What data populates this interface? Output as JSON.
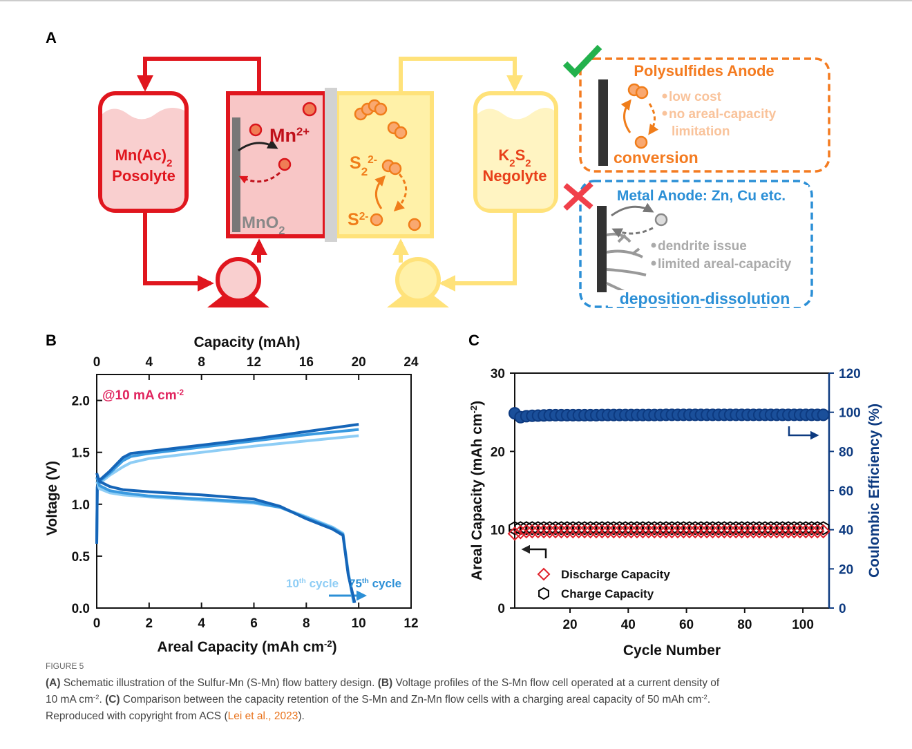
{
  "panel_labels": [
    "A",
    "B",
    "C"
  ],
  "diagram": {
    "posolyte_name": [
      {
        "t": "Mn(Ac)"
      },
      {
        "sub": "2"
      }
    ],
    "posolyte_label": "Posolyte",
    "mn_ion": [
      {
        "t": "Mn"
      },
      {
        "sup": "2+"
      }
    ],
    "mno2": [
      {
        "t": "MnO"
      },
      {
        "sub": "2"
      }
    ],
    "s2_ion": [
      {
        "t": "S"
      },
      {
        "sub": "2"
      },
      {
        "sup": "2-"
      }
    ],
    "s_ion": [
      {
        "t": "S"
      },
      {
        "sup": "2-"
      }
    ],
    "negolyte_name": [
      {
        "t": "K"
      },
      {
        "sub": "2"
      },
      {
        "t": "S"
      },
      {
        "sub": "2"
      }
    ],
    "negolyte_label": "Negolyte",
    "polysulfide_box": {
      "title": "Polysulfides Anode",
      "points": [
        "low cost",
        "no areal-capacity",
        "limitation"
      ],
      "mechanism": "conversion"
    },
    "metal_box": {
      "title": "Metal Anode: Zn, Cu etc.",
      "points": [
        "dendrite issue",
        "limited areal-capacity"
      ],
      "mechanism": "deposition-dissolution"
    }
  },
  "chart_data": [
    {
      "type": "line",
      "xlabel": [
        {
          "t": "Areal Capacity (mAh cm"
        },
        {
          "sup": "-2"
        },
        {
          "t": ")"
        }
      ],
      "x2label": "Capacity (mAh)",
      "ylabel": "Voltage (V)",
      "xlim": [
        0,
        12
      ],
      "xticks": [
        0,
        2,
        4,
        6,
        8,
        10,
        12
      ],
      "x2lim": [
        0,
        24
      ],
      "x2ticks": [
        0,
        4,
        8,
        12,
        16,
        20,
        24
      ],
      "ylim": [
        0,
        2.25
      ],
      "yticks": [
        {
          "value": 0,
          "label": "0.0"
        },
        0.5,
        {
          "value": 1,
          "label": "1.0"
        },
        1.5,
        {
          "value": 2,
          "label": "2.0"
        }
      ],
      "annotations": [
        {
          "text": [
            {
              "t": "@10 mA cm"
            },
            {
              "sup": "-2"
            }
          ],
          "color": "#e0245e"
        },
        {
          "text": [
            {
              "t": "10"
            },
            {
              "sup": "th"
            },
            {
              "t": " cycle"
            }
          ],
          "color": "#8ecdf5"
        },
        {
          "text": [
            {
              "t": "75"
            },
            {
              "sup": "th"
            },
            {
              "t": " cycle"
            }
          ],
          "color": "#2b8fd6"
        }
      ],
      "series": [
        {
          "color": "#8ecdf5",
          "x": [
            0,
            0.02,
            0.1,
            0.5,
            1,
            1.3,
            2,
            4,
            6,
            8,
            10
          ],
          "values": [
            0.62,
            1.15,
            1.2,
            1.28,
            1.36,
            1.4,
            1.44,
            1.5,
            1.56,
            1.61,
            1.66
          ]
        },
        {
          "color": "#3a9ae0",
          "x": [
            0,
            0.02,
            0.1,
            0.5,
            1,
            1.3,
            2,
            4,
            6,
            8,
            10
          ],
          "values": [
            0.62,
            1.16,
            1.22,
            1.3,
            1.42,
            1.46,
            1.49,
            1.55,
            1.61,
            1.67,
            1.72
          ]
        },
        {
          "color": "#1565b8",
          "x": [
            0,
            0.02,
            0.1,
            0.5,
            1,
            1.3,
            2,
            4,
            6,
            8,
            10
          ],
          "values": [
            0.62,
            1.17,
            1.23,
            1.32,
            1.45,
            1.49,
            1.51,
            1.57,
            1.63,
            1.7,
            1.77
          ]
        },
        {
          "color": "#8ecdf5",
          "x": [
            0,
            0.1,
            0.5,
            1,
            2,
            4,
            6,
            7,
            8,
            9,
            9.4,
            9.6,
            9.8
          ],
          "values": [
            1.22,
            1.15,
            1.11,
            1.09,
            1.07,
            1.04,
            1.01,
            0.97,
            0.88,
            0.78,
            0.72,
            0.35,
            0.06
          ]
        },
        {
          "color": "#3a9ae0",
          "x": [
            0,
            0.1,
            0.5,
            1,
            2,
            4,
            6,
            7,
            8,
            9,
            9.4,
            9.6,
            9.82
          ],
          "values": [
            1.26,
            1.18,
            1.13,
            1.11,
            1.08,
            1.05,
            1.02,
            0.97,
            0.87,
            0.77,
            0.71,
            0.33,
            0.05
          ]
        },
        {
          "color": "#1565b8",
          "x": [
            0,
            0.1,
            0.5,
            1,
            2,
            4,
            6,
            7,
            8,
            9,
            9.4,
            9.6,
            9.85
          ],
          "values": [
            1.3,
            1.22,
            1.17,
            1.14,
            1.12,
            1.09,
            1.05,
            0.98,
            0.86,
            0.76,
            0.7,
            0.32,
            0.05
          ]
        }
      ]
    },
    {
      "type": "scatter",
      "xlabel": "Cycle Number",
      "ylabel": [
        {
          "t": "Areal Capacity (mAh cm"
        },
        {
          "sup": "-2"
        },
        {
          "t": ")"
        }
      ],
      "y2label": "Coulombic Efficiency (%)",
      "y2color": "#0d3a80",
      "xlim": [
        1,
        109
      ],
      "xticks": [
        20,
        40,
        60,
        80,
        100
      ],
      "ylim": [
        0,
        30
      ],
      "yticks": [
        0,
        10,
        20,
        30
      ],
      "y2lim": [
        0,
        120
      ],
      "y2ticks": [
        0,
        20,
        40,
        60,
        80,
        100,
        120
      ],
      "x": [
        1,
        3,
        5,
        7,
        9,
        11,
        13,
        15,
        17,
        19,
        21,
        23,
        25,
        27,
        29,
        31,
        33,
        35,
        37,
        39,
        41,
        43,
        45,
        47,
        49,
        51,
        53,
        55,
        57,
        59,
        61,
        63,
        65,
        67,
        69,
        71,
        73,
        75,
        77,
        79,
        81,
        83,
        85,
        87,
        89,
        91,
        93,
        95,
        97,
        99,
        101,
        103,
        105,
        107
      ],
      "series": [
        {
          "name": "Discharge Capacity",
          "color": "#e0202a",
          "marker": "diamond",
          "values": [
            9.5,
            9.7,
            9.8,
            9.8,
            9.8,
            9.8,
            9.8,
            9.8,
            9.8,
            9.8,
            9.8,
            9.8,
            9.8,
            9.8,
            9.8,
            9.8,
            9.8,
            9.8,
            9.8,
            9.8,
            9.8,
            9.8,
            9.8,
            9.8,
            9.8,
            9.8,
            9.8,
            9.8,
            9.8,
            9.8,
            9.8,
            9.8,
            9.8,
            9.8,
            9.8,
            9.8,
            9.8,
            9.8,
            9.8,
            9.8,
            9.8,
            9.8,
            9.8,
            9.8,
            9.8,
            9.8,
            9.8,
            9.8,
            9.8,
            9.8,
            9.8,
            9.8,
            9.8,
            9.8
          ]
        },
        {
          "name": "Charge Capacity",
          "color": "#000000",
          "marker": "hexagon",
          "values": [
            10.2,
            10.2,
            10.2,
            10.2,
            10.2,
            10.2,
            10.2,
            10.2,
            10.2,
            10.2,
            10.2,
            10.2,
            10.2,
            10.2,
            10.2,
            10.2,
            10.2,
            10.2,
            10.2,
            10.2,
            10.2,
            10.2,
            10.2,
            10.2,
            10.2,
            10.2,
            10.2,
            10.2,
            10.2,
            10.2,
            10.2,
            10.2,
            10.2,
            10.2,
            10.2,
            10.2,
            10.2,
            10.2,
            10.2,
            10.2,
            10.2,
            10.2,
            10.2,
            10.2,
            10.2,
            10.2,
            10.2,
            10.2,
            10.2,
            10.2,
            10.2,
            10.2,
            10.2,
            10.2
          ]
        },
        {
          "color": "#1a4f9a",
          "marker": "circle",
          "axis": "y2",
          "values": [
            99.5,
            97.5,
            98,
            98.2,
            98.3,
            98.4,
            98.5,
            98.5,
            98.5,
            98.5,
            98.5,
            98.5,
            98.5,
            98.5,
            98.5,
            98.6,
            98.6,
            98.6,
            98.6,
            98.6,
            98.6,
            98.6,
            98.6,
            98.6,
            98.6,
            98.6,
            98.7,
            98.7,
            98.7,
            98.7,
            98.7,
            98.7,
            98.7,
            98.7,
            98.7,
            98.7,
            98.7,
            98.7,
            98.7,
            98.7,
            98.7,
            98.7,
            98.7,
            98.7,
            98.7,
            98.7,
            98.7,
            98.7,
            98.7,
            98.7,
            98.7,
            98.7,
            98.7,
            98.7
          ]
        }
      ]
    }
  ],
  "caption": {
    "label": "FIGURE 5",
    "lines": [
      [
        {
          "b": "(A)"
        },
        {
          "t": " Schematic illustration of the Sulfur-Mn (S-Mn) flow battery design. "
        },
        {
          "b": "(B)"
        },
        {
          "t": " Voltage profiles of the S-Mn flow cell operated at a current density of"
        }
      ],
      [
        {
          "t": "10 mA cm"
        },
        {
          "sup": "-2"
        },
        {
          "t": ". "
        },
        {
          "b": "(C)"
        },
        {
          "t": " Comparison between the capacity retention of the S-Mn and Zn-Mn flow cells with a charging areal capacity of 50 mAh cm"
        },
        {
          "sup": "-2"
        },
        {
          "t": "."
        }
      ],
      [
        {
          "t": "Reproduced with copyright from ACS ("
        },
        {
          "link": "Lei et al., 2023"
        },
        {
          "t": ")."
        }
      ]
    ]
  }
}
